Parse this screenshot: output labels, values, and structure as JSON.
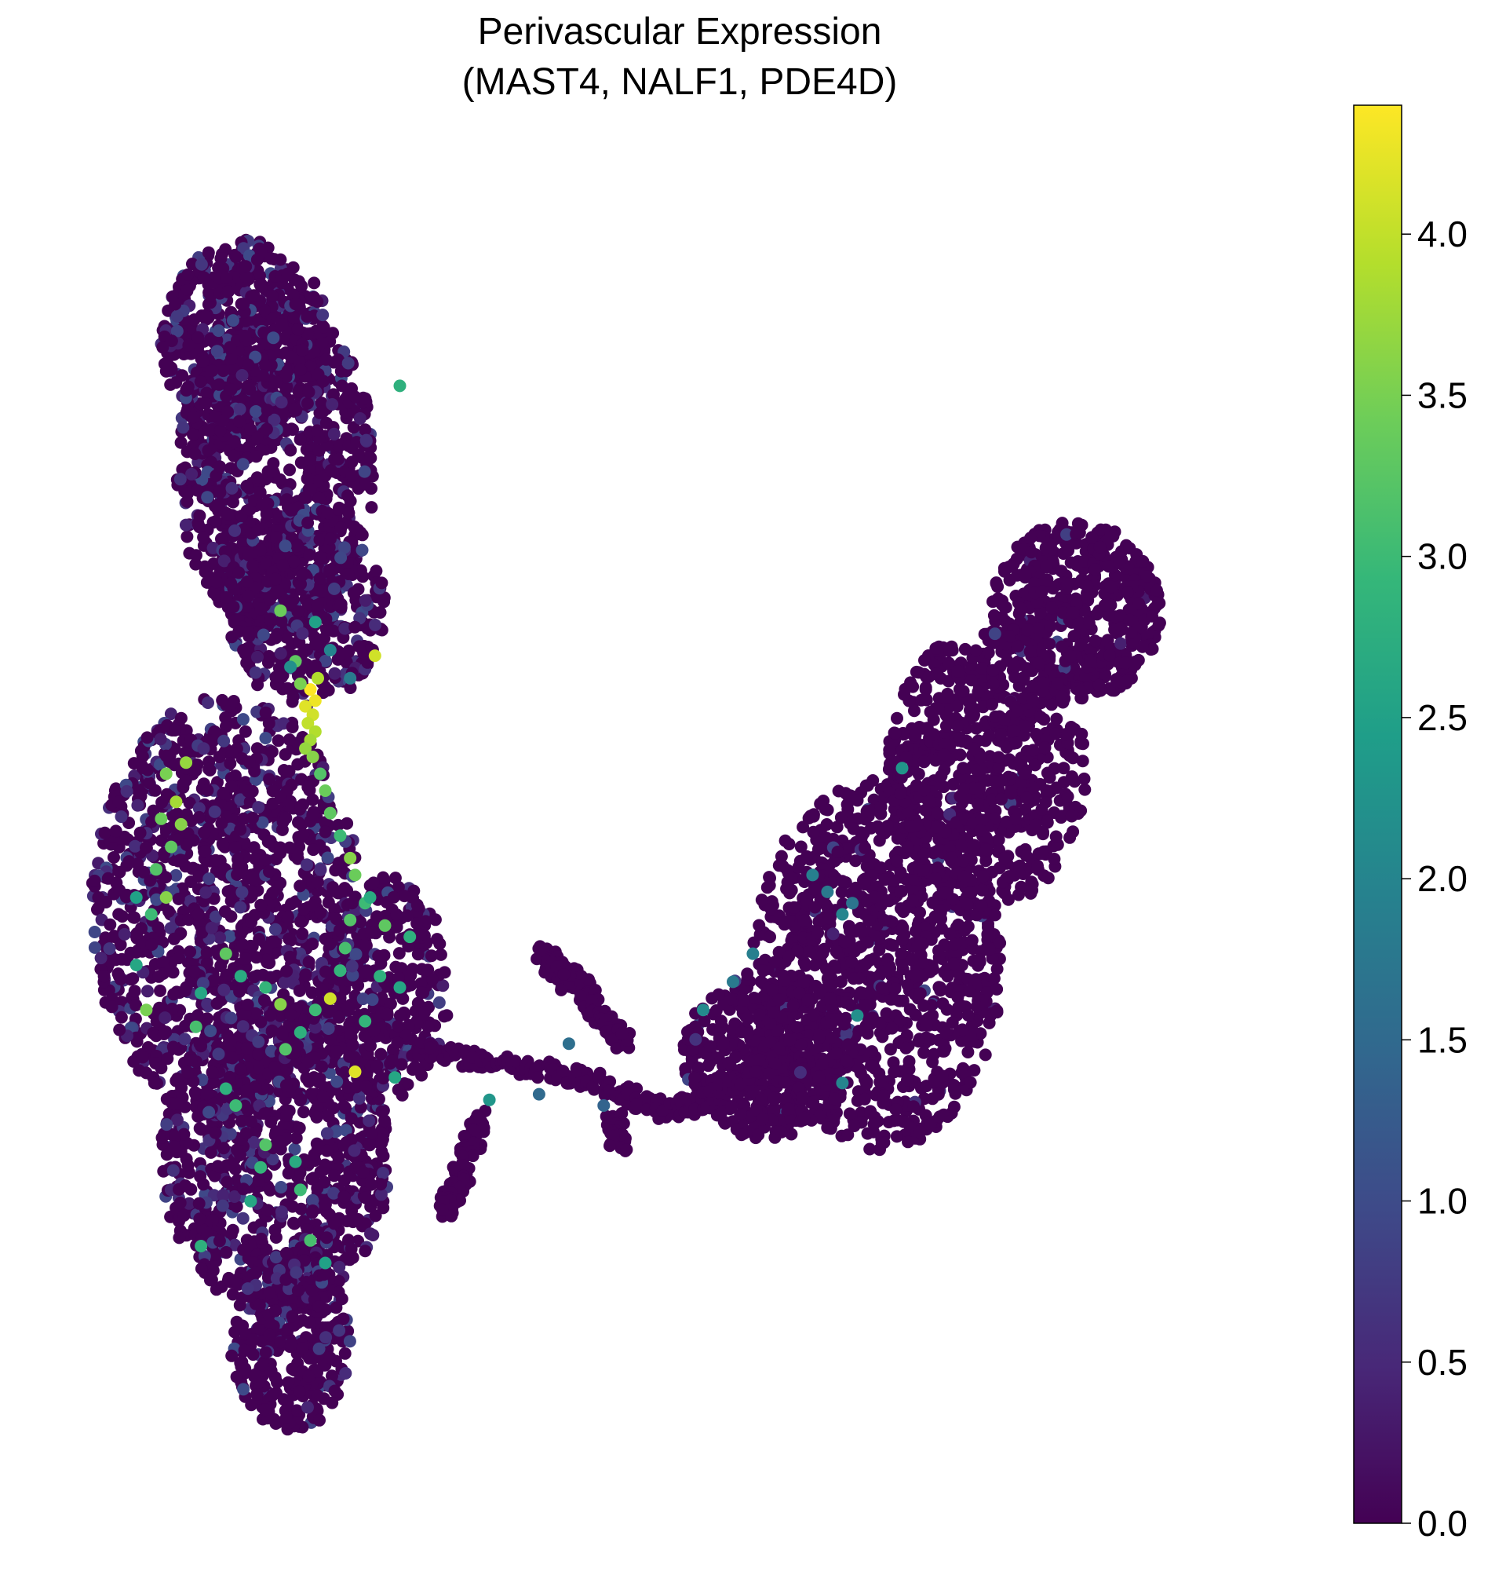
{
  "chart_data": {
    "type": "scatter",
    "title_line1": "Perivascular Expression",
    "title_line2": "(MAST4, NALF1, PDE4D)",
    "colormap": "viridis",
    "colorbar": {
      "vmin": 0.0,
      "vmax": 4.4,
      "ticks": [
        0.0,
        0.5,
        1.0,
        1.5,
        2.0,
        2.5,
        3.0,
        3.5,
        4.0
      ],
      "tick_labels": [
        "0.0",
        "0.5",
        "1.0",
        "1.5",
        "2.0",
        "2.5",
        "3.0",
        "3.5",
        "4.0"
      ]
    },
    "axes_visible": false,
    "grid": false,
    "notable_points": [
      {
        "x": -7.6,
        "y": 5.9,
        "value": 4.4
      },
      {
        "x": -7.5,
        "y": 5.7,
        "value": 4.3
      },
      {
        "x": -7.7,
        "y": 5.6,
        "value": 4.2
      },
      {
        "x": -7.55,
        "y": 5.45,
        "value": 4.1
      },
      {
        "x": -7.65,
        "y": 5.3,
        "value": 4.0
      },
      {
        "x": -7.5,
        "y": 5.15,
        "value": 3.9
      },
      {
        "x": -7.6,
        "y": 5.0,
        "value": 3.8
      },
      {
        "x": -7.7,
        "y": 4.85,
        "value": 3.7
      },
      {
        "x": -7.55,
        "y": 4.7,
        "value": 3.6
      },
      {
        "x": -7.45,
        "y": 6.1,
        "value": 3.9
      },
      {
        "x": -7.8,
        "y": 6.0,
        "value": 3.5
      },
      {
        "x": -7.9,
        "y": 6.4,
        "value": 3.3
      },
      {
        "x": -7.4,
        "y": 4.4,
        "value": 3.2
      },
      {
        "x": -7.3,
        "y": 4.1,
        "value": 3.4
      },
      {
        "x": -7.2,
        "y": 3.7,
        "value": 3.3
      },
      {
        "x": -7.0,
        "y": 3.3,
        "value": 3.0
      },
      {
        "x": -6.8,
        "y": 2.9,
        "value": 3.6
      },
      {
        "x": -6.7,
        "y": 2.6,
        "value": 3.4
      },
      {
        "x": -6.5,
        "y": 2.1,
        "value": 3.0
      },
      {
        "x": -6.8,
        "y": 1.8,
        "value": 3.2
      },
      {
        "x": -6.9,
        "y": 1.3,
        "value": 3.1
      },
      {
        "x": -7.0,
        "y": 0.9,
        "value": 2.9
      },
      {
        "x": -7.2,
        "y": 0.4,
        "value": 4.1
      },
      {
        "x": -7.5,
        "y": 0.2,
        "value": 3.0
      },
      {
        "x": -7.8,
        "y": -0.2,
        "value": 2.8
      },
      {
        "x": -8.1,
        "y": -0.5,
        "value": 3.2
      },
      {
        "x": -8.2,
        "y": 0.3,
        "value": 3.6
      },
      {
        "x": -8.5,
        "y": 0.6,
        "value": 2.9
      },
      {
        "x": -9.0,
        "y": 0.8,
        "value": 2.7
      },
      {
        "x": -9.3,
        "y": 1.2,
        "value": 3.3
      },
      {
        "x": -9.8,
        "y": 0.5,
        "value": 2.6
      },
      {
        "x": -10.1,
        "y": 4.6,
        "value": 3.7
      },
      {
        "x": -10.5,
        "y": 4.4,
        "value": 3.5
      },
      {
        "x": -10.3,
        "y": 3.9,
        "value": 3.8
      },
      {
        "x": -10.6,
        "y": 3.6,
        "value": 3.4
      },
      {
        "x": -10.2,
        "y": 3.5,
        "value": 3.6
      },
      {
        "x": -10.4,
        "y": 3.1,
        "value": 3.3
      },
      {
        "x": -10.7,
        "y": 2.7,
        "value": 3.2
      },
      {
        "x": -10.5,
        "y": 2.2,
        "value": 3.6
      },
      {
        "x": -10.8,
        "y": 1.9,
        "value": 3.0
      },
      {
        "x": -11.1,
        "y": 1.0,
        "value": 2.6
      },
      {
        "x": -11.1,
        "y": 2.2,
        "value": 2.5
      },
      {
        "x": -10.9,
        "y": 0.2,
        "value": 3.5
      },
      {
        "x": -9.9,
        "y": -0.1,
        "value": 3.1
      },
      {
        "x": -6.1,
        "y": 1.7,
        "value": 3.3
      },
      {
        "x": -6.4,
        "y": 2.2,
        "value": 2.7
      },
      {
        "x": -6.2,
        "y": 0.8,
        "value": 2.8
      },
      {
        "x": -5.6,
        "y": 1.5,
        "value": 2.8
      },
      {
        "x": -5.8,
        "y": 0.6,
        "value": 2.6
      },
      {
        "x": -6.5,
        "y": 0.0,
        "value": 2.9
      },
      {
        "x": -6.7,
        "y": -0.9,
        "value": 4.2
      },
      {
        "x": -5.9,
        "y": -1.0,
        "value": 2.6
      },
      {
        "x": -7.9,
        "y": -2.5,
        "value": 2.7
      },
      {
        "x": -7.8,
        "y": -3.0,
        "value": 3.0
      },
      {
        "x": -8.5,
        "y": -2.2,
        "value": 3.2
      },
      {
        "x": -8.6,
        "y": -2.6,
        "value": 2.9
      },
      {
        "x": -8.8,
        "y": -3.2,
        "value": 2.6
      },
      {
        "x": -9.1,
        "y": -1.5,
        "value": 3.0
      },
      {
        "x": -9.3,
        "y": -1.2,
        "value": 2.8
      },
      {
        "x": -7.6,
        "y": -3.9,
        "value": 3.1
      },
      {
        "x": -7.3,
        "y": -4.3,
        "value": 2.5
      },
      {
        "x": -9.8,
        "y": -4.0,
        "value": 2.8
      },
      {
        "x": -8.2,
        "y": 7.3,
        "value": 3.4
      },
      {
        "x": -7.5,
        "y": 7.1,
        "value": 2.5
      },
      {
        "x": -7.2,
        "y": 6.6,
        "value": 2.0
      },
      {
        "x": -8.0,
        "y": 6.3,
        "value": 2.2
      },
      {
        "x": -6.8,
        "y": 6.1,
        "value": 1.8
      },
      {
        "x": -6.3,
        "y": 6.5,
        "value": 4.1
      },
      {
        "x": -5.8,
        "y": 11.3,
        "value": 2.8
      },
      {
        "x": -4.0,
        "y": -1.4,
        "value": 2.3
      },
      {
        "x": 2.5,
        "y": 2.6,
        "value": 1.9
      },
      {
        "x": 2.8,
        "y": 2.3,
        "value": 1.8
      },
      {
        "x": 3.1,
        "y": 1.9,
        "value": 2.0
      },
      {
        "x": 3.3,
        "y": 2.1,
        "value": 1.7
      },
      {
        "x": 1.3,
        "y": 1.2,
        "value": 1.9
      },
      {
        "x": 0.9,
        "y": 0.7,
        "value": 1.8
      },
      {
        "x": 0.3,
        "y": 0.2,
        "value": 2.1
      },
      {
        "x": 3.4,
        "y": 0.1,
        "value": 2.2
      },
      {
        "x": 3.1,
        "y": -1.1,
        "value": 2.0
      },
      {
        "x": 4.3,
        "y": 4.5,
        "value": 2.3
      },
      {
        "x": -2.4,
        "y": -0.4,
        "value": 1.6
      },
      {
        "x": -1.7,
        "y": -1.5,
        "value": 1.4
      },
      {
        "x": -3.0,
        "y": -1.3,
        "value": 1.5
      }
    ],
    "point_count_note": ""
  }
}
